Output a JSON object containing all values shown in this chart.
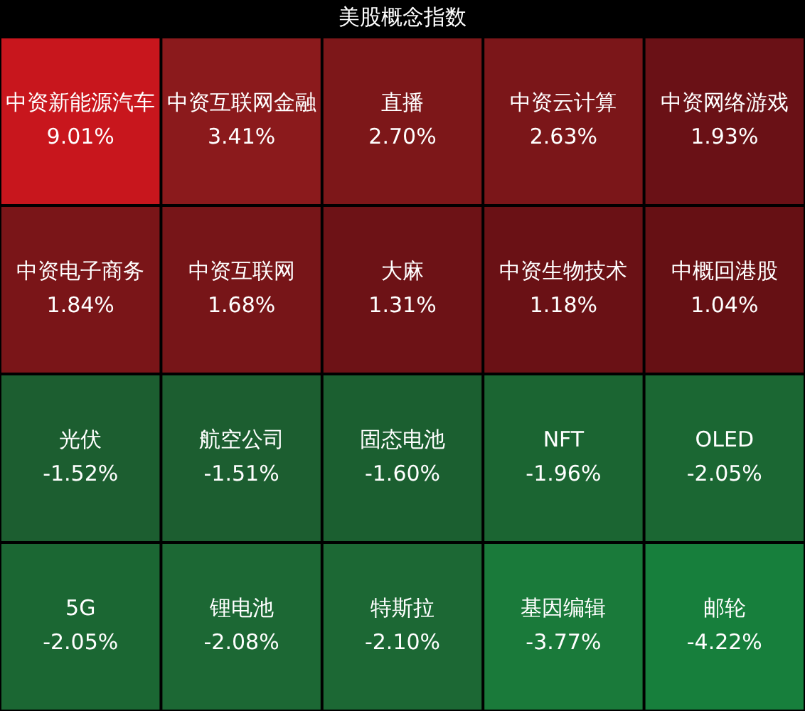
{
  "chart_data": {
    "type": "other",
    "title": "美股概念指数",
    "categories": [
      "中资新能源汽车",
      "中资互联网金融",
      "直播",
      "中资云计算",
      "中资网络游戏",
      "中资电子商务",
      "中资互联网",
      "大麻",
      "中资生物技术",
      "中概回港股",
      "光伏",
      "航空公司",
      "固态电池",
      "NFT",
      "OLED",
      "5G",
      "锂电池",
      "特斯拉",
      "基因编辑",
      "邮轮"
    ],
    "values": [
      9.01,
      3.41,
      2.7,
      2.63,
      1.93,
      1.84,
      1.68,
      1.31,
      1.18,
      1.04,
      -1.52,
      -1.51,
      -1.6,
      -1.96,
      -2.05,
      -2.05,
      -2.08,
      -2.1,
      -3.77,
      -4.22
    ],
    "value_labels": [
      "9.01%",
      "3.41%",
      "2.70%",
      "2.63%",
      "1.93%",
      "1.84%",
      "1.68%",
      "1.31%",
      "1.18%",
      "1.04%",
      "-1.52%",
      "-1.51%",
      "-1.60%",
      "-1.96%",
      "-2.05%",
      "-2.05%",
      "-2.08%",
      "-2.10%",
      "-3.77%",
      "-4.22%"
    ],
    "colors": [
      "#c8161d",
      "#8b1a1c",
      "#7d1719",
      "#7b1619",
      "#6a1116",
      "#7a1518",
      "#771518",
      "#6d1216",
      "#6a1115",
      "#661014",
      "#1c5e30",
      "#1c5e30",
      "#1b5f30",
      "#1b6532",
      "#1b6733",
      "#1b6733",
      "#1c6834",
      "#1c6834",
      "#1a7a3a",
      "#177f3c"
    ]
  }
}
